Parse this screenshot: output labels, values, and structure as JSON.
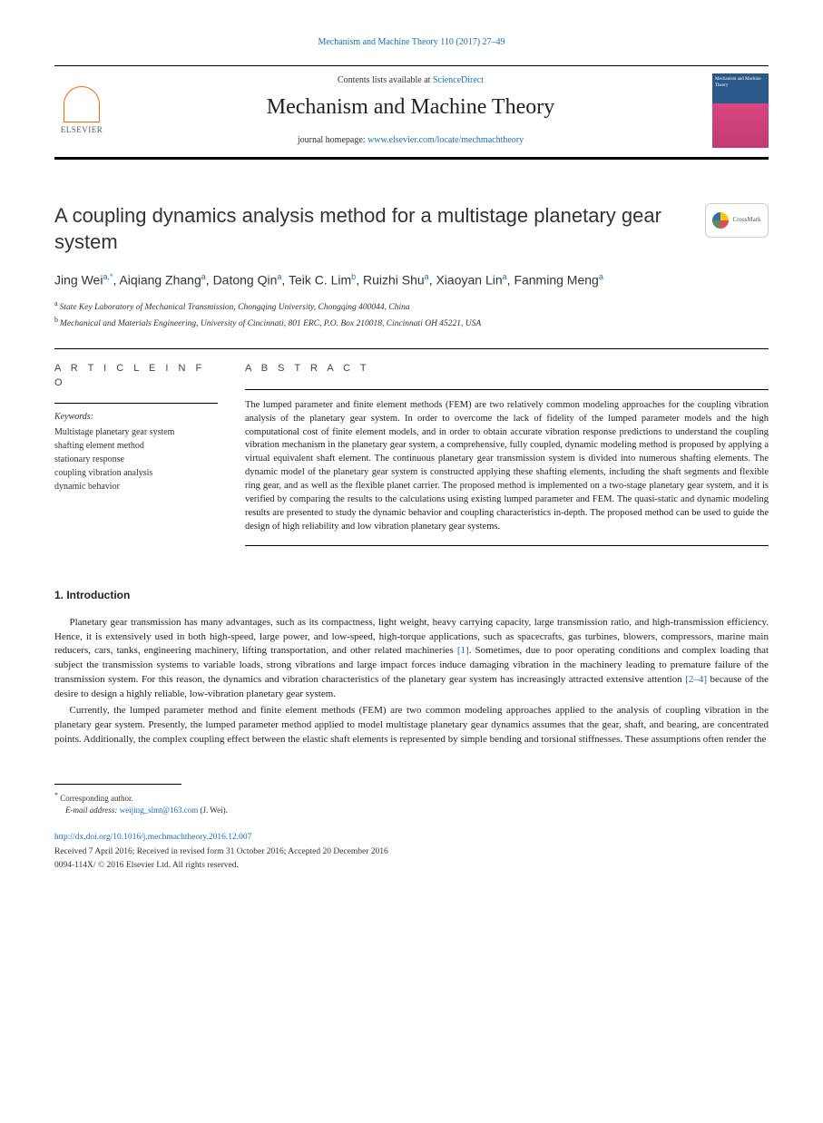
{
  "header": {
    "citation": "Mechanism and Machine Theory 110 (2017) 27–49",
    "contents_prefix": "Contents lists available at ",
    "contents_link": "ScienceDirect",
    "journal_name": "Mechanism and Machine Theory",
    "homepage_prefix": "journal homepage: ",
    "homepage_url": "www.elsevier.com/locate/mechmachtheory",
    "publisher_label": "ELSEVIER",
    "cover_title": "Mechanism and Machine Theory",
    "crossmark_label": "CrossMark"
  },
  "article": {
    "title": "A coupling dynamics analysis method for a multistage planetary gear system",
    "authors_html_parts": [
      {
        "name": "Jing Wei",
        "affil": "a,",
        "corr": "*"
      },
      {
        "name": "Aiqiang Zhang",
        "affil": "a"
      },
      {
        "name": "Datong Qin",
        "affil": "a"
      },
      {
        "name": "Teik C. Lim",
        "affil": "b"
      },
      {
        "name": "Ruizhi Shu",
        "affil": "a"
      },
      {
        "name": "Xiaoyan Lin",
        "affil": "a"
      },
      {
        "name": "Fanming Meng",
        "affil": "a"
      }
    ],
    "affiliations": [
      {
        "key": "a",
        "text": "State Key Laboratory of Mechanical Transmission, Chongqing University, Chongqing 400044, China"
      },
      {
        "key": "b",
        "text": "Mechanical and Materials Engineering, University of Cincinnati, 801 ERC, P.O. Box 210018, Cincinnati OH 45221, USA"
      }
    ]
  },
  "info": {
    "section_label": "A R T I C L E  I N F O",
    "keywords_label": "Keywords:",
    "keywords": [
      "Multistage planetary gear system",
      "shafting element method",
      "stationary response",
      "coupling vibration analysis",
      "dynamic behavior"
    ]
  },
  "abstract": {
    "section_label": "A B S T R A C T",
    "text": "The lumped parameter and finite element methods (FEM) are two relatively common modeling approaches for the coupling vibration analysis of the planetary gear system. In order to overcome the lack of fidelity of the lumped parameter models and the high computational cost of finite element models, and in order to obtain accurate vibration response predictions to understand the coupling vibration mechanism in the planetary gear system, a comprehensive, fully coupled, dynamic modeling method is proposed by applying a virtual equivalent shaft element. The continuous planetary gear transmission system is divided into numerous shafting elements. The dynamic model of the planetary gear system is constructed applying these shafting elements, including the shaft segments and flexible ring gear, and as well as the flexible planet carrier. The proposed method is implemented on a two-stage planetary gear system, and it is verified by comparing the results to the calculations using existing lumped parameter and FEM. The quasi-static and dynamic modeling results are presented to study the dynamic behavior and coupling characteristics in-depth. The proposed method can be used to guide the design of high reliability and low vibration planetary gear systems."
  },
  "intro": {
    "heading": "1. Introduction",
    "para1_pre": "Planetary gear transmission has many advantages, such as its compactness, light weight, heavy carrying capacity, large transmission ratio, and high-transmission efficiency. Hence, it is extensively used in both high-speed, large power, and low-speed, high-torque applications, such as spacecrafts, gas turbines, blowers, compressors, marine main reducers, cars, tanks, engineering machinery, lifting transportation, and other related machineries ",
    "para1_ref1": "[1]",
    "para1_mid": ". Sometimes, due to poor operating conditions and complex loading that subject the transmission systems to variable loads, strong vibrations and large impact forces induce damaging vibration in the machinery leading to premature failure of the transmission system. For this reason, the dynamics and vibration characteristics of the planetary gear system has increasingly attracted extensive attention ",
    "para1_ref2": "[2–4]",
    "para1_post": " because of the desire to design a highly reliable, low-vibration planetary gear system.",
    "para2": "Currently, the lumped parameter method and finite element methods (FEM) are two common modeling approaches applied to the analysis of coupling vibration in the planetary gear system. Presently, the lumped parameter method applied to model multistage planetary gear dynamics assumes that the gear, shaft, and bearing, are concentrated points. Additionally, the complex coupling effect between the elastic shaft elements is represented by simple bending and torsional stiffnesses. These assumptions often render the"
  },
  "footer": {
    "corr_marker": "*",
    "corr_label": " Corresponding author.",
    "email_label": "E-mail address: ",
    "email": "weijing_slmt@163.com",
    "email_suffix": " (J. Wei).",
    "doi": "http://dx.doi.org/10.1016/j.mechmachtheory.2016.12.007",
    "received": "Received 7 April 2016; Received in revised form 31 October 2016; Accepted 20 December 2016",
    "copyright": "0094-114X/ © 2016 Elsevier Ltd. All rights reserved."
  },
  "colors": {
    "link": "#1a6fb5",
    "text": "#222222",
    "elsevier_orange": "#ff6600"
  }
}
